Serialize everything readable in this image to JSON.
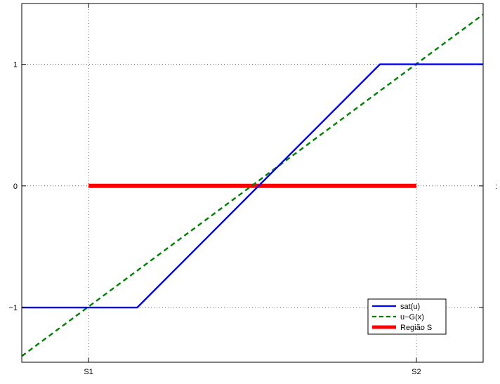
{
  "chart_data": {
    "type": "line",
    "title": "",
    "xlabel": "",
    "ylabel": "",
    "xlim": [
      -0.8,
      1.1
    ],
    "ylim": [
      -1.45,
      1.5
    ],
    "grid": true,
    "legend_position": "bottom-right",
    "xticks": [
      {
        "value": -0.525,
        "label": "S1"
      },
      {
        "value": 0.825,
        "label": "S2"
      }
    ],
    "yticks": [
      {
        "value": -1,
        "label": "−1"
      },
      {
        "value": 0,
        "label": "0"
      },
      {
        "value": 1,
        "label": "1"
      }
    ],
    "series": [
      {
        "name": "sat(u)",
        "color": "#0000ff",
        "style": "solid",
        "x": [
          -0.8,
          -0.325,
          0.675,
          1.1
        ],
        "y": [
          -1,
          -1,
          1,
          1
        ]
      },
      {
        "name": "u−G(x)",
        "color": "#008000",
        "style": "dashed",
        "x": [
          -0.8,
          1.1
        ],
        "y": [
          -1.4,
          1.41
        ]
      },
      {
        "name": "Região S",
        "color": "#ff0000",
        "style": "thick",
        "x": [
          -0.525,
          0.825
        ],
        "y": [
          0,
          0
        ]
      }
    ]
  }
}
